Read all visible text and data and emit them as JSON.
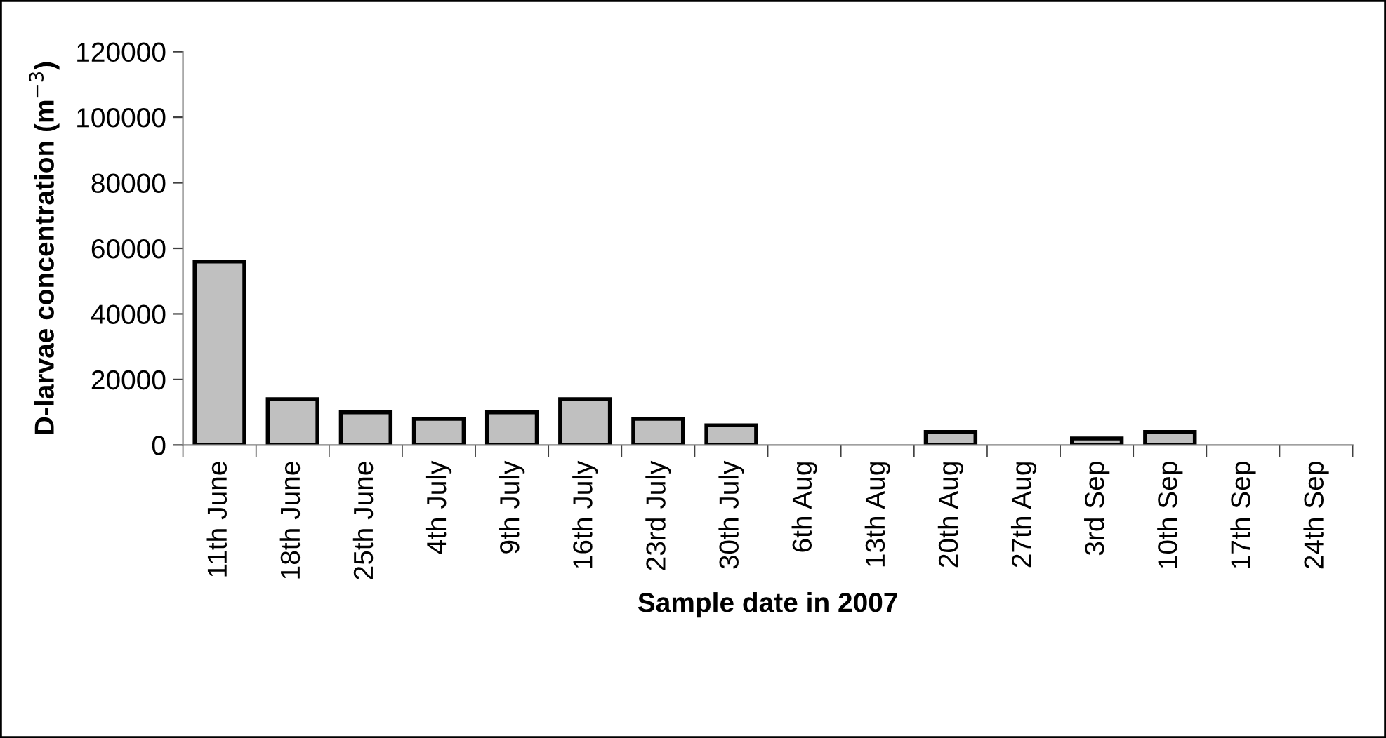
{
  "chart_data": {
    "type": "bar",
    "xlabel": "Sample date in 2007",
    "ylabel": "D-larvae concentration (m$^{−3}$)",
    "categories": [
      "11th June",
      "18th June",
      "25th June",
      "4th July",
      "9th July",
      "16th July",
      "23rd July",
      "30th July",
      "6th Aug",
      "13th Aug",
      "20th Aug",
      "27th Aug",
      "3rd Sep",
      "10th Sep",
      "17th Sep",
      "24th Sep"
    ],
    "values": [
      56000,
      14000,
      10000,
      8000,
      10000,
      14000,
      8000,
      6000,
      0,
      0,
      4000,
      0,
      2000,
      4000,
      0,
      0
    ],
    "color": "#c0c0c0",
    "ylim": [
      0,
      120000
    ],
    "yticks": [
      0,
      20000,
      40000,
      60000,
      80000,
      100000,
      120000
    ],
    "grid": false,
    "legend": false
  }
}
